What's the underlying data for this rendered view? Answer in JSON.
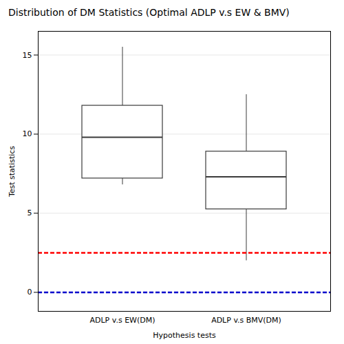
{
  "chart_data": {
    "type": "box",
    "title": "Distribution of DM Statistics (Optimal ADLP v.s EW & BMV)",
    "xlabel": "Hypothesis tests",
    "ylabel": "Test statistics",
    "categories": [
      "ADLP v.s EW(DM)",
      "ADLP v.s BMV(DM)"
    ],
    "boxes": [
      {
        "q1": 7.2,
        "median": 9.8,
        "q3": 11.8,
        "whisker_low": 6.8,
        "whisker_high": 15.5
      },
      {
        "q1": 5.25,
        "median": 7.3,
        "q3": 8.9,
        "whisker_low": 2.0,
        "whisker_high": 12.5
      }
    ],
    "color": "#3a3a3a",
    "hlines": [
      {
        "value": 2.5,
        "color": "#ff0000",
        "line_style": "dashed"
      },
      {
        "value": 0.0,
        "color": "#0000cc",
        "line_style": "dashed"
      }
    ],
    "ylim": [
      -1.2,
      16.5
    ],
    "yticks": [
      0,
      5,
      10,
      15
    ],
    "grid": true
  }
}
